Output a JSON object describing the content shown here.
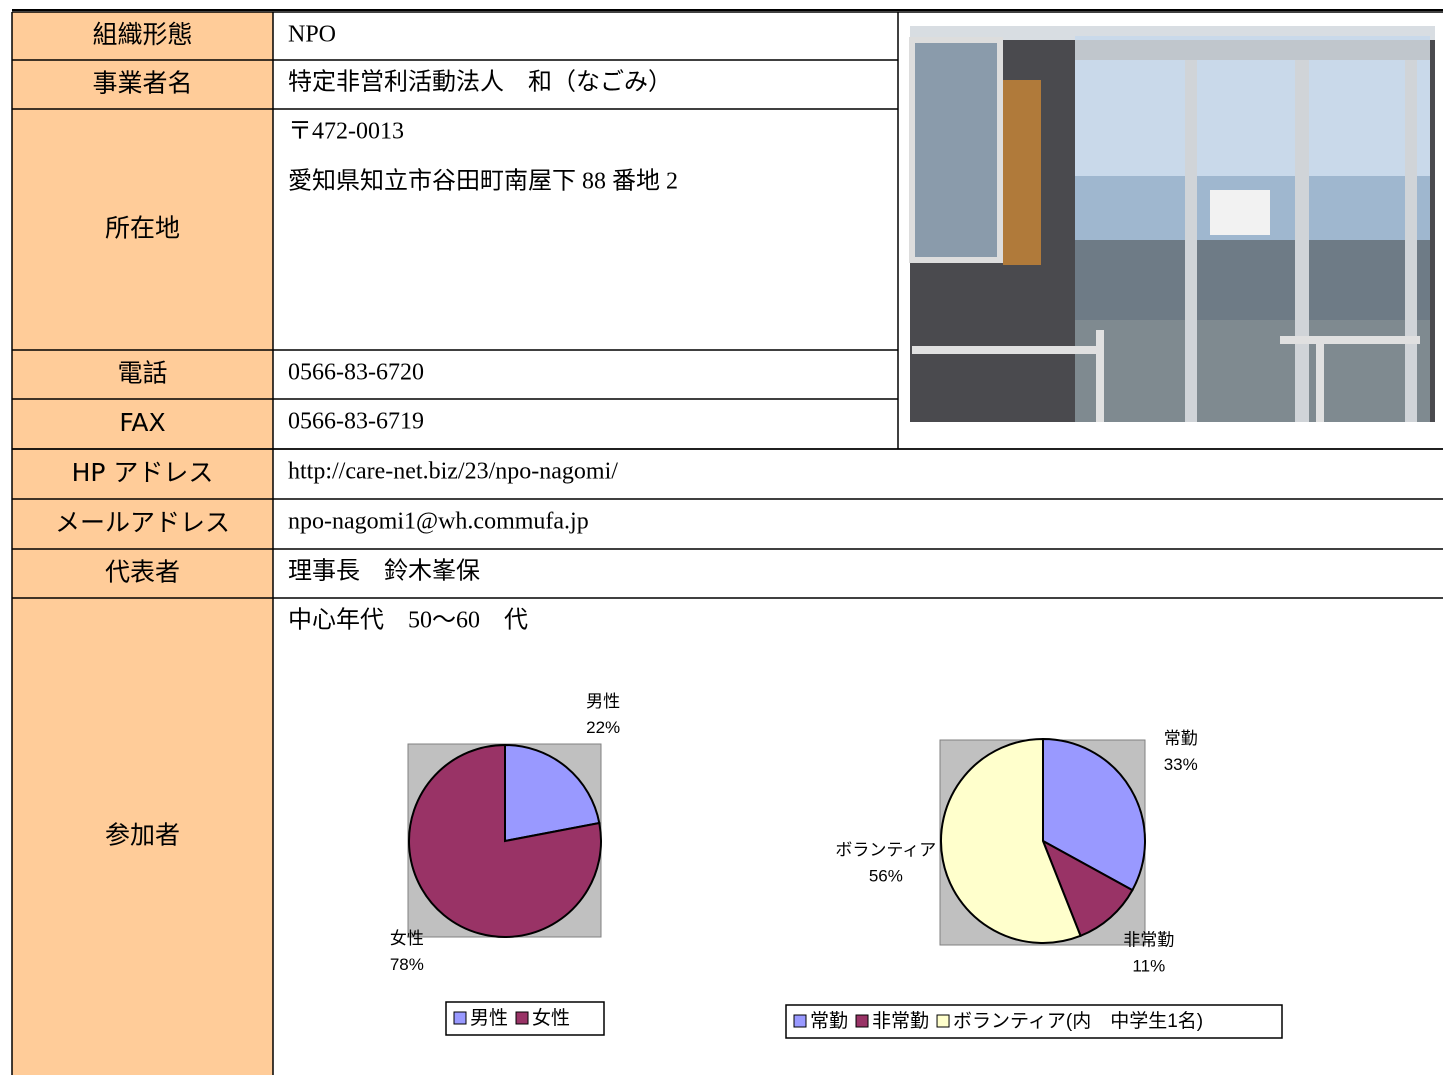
{
  "table": {
    "rows": [
      {
        "label": "組織形態",
        "value": [
          "NPO"
        ]
      },
      {
        "label": "事業者名",
        "value": [
          "特定非営利活動法人　和（なごみ）"
        ]
      },
      {
        "label": "所在地",
        "value": [
          "〒472-0013",
          "愛知県知立市谷田町南屋下 88 番地 2"
        ]
      },
      {
        "label": "電話",
        "value": [
          "0566-83-6720"
        ]
      },
      {
        "label": "FAX",
        "value": [
          "0566-83-6719"
        ]
      },
      {
        "label": "HP アドレス",
        "value": [
          "http://care-net.biz/23/npo-nagomi/"
        ]
      },
      {
        "label": "メールアドレス",
        "value": [
          "npo-nagomi1@wh.commufa.jp"
        ]
      },
      {
        "label": "代表者",
        "value": [
          "理事長　鈴木峯保"
        ]
      },
      {
        "label": "参加者",
        "value": [
          "中心年代　50～60　代"
        ]
      }
    ]
  },
  "chart_data": [
    {
      "type": "pie",
      "categories": [
        "男性",
        "女性"
      ],
      "values": [
        22,
        78
      ],
      "value_labels": [
        "22%",
        "78%"
      ],
      "colors": [
        "#9999ff",
        "#993366"
      ]
    },
    {
      "type": "pie",
      "categories": [
        "常勤",
        "非常勤",
        "ボランティア"
      ],
      "values": [
        33,
        11,
        56
      ],
      "value_labels": [
        "33%",
        "11%",
        "56%"
      ],
      "colors": [
        "#9999ff",
        "#993366",
        "#ffffcc"
      ],
      "legend": [
        "常勤",
        "非常勤",
        "ボランティア(内　中学生1名)"
      ]
    }
  ]
}
